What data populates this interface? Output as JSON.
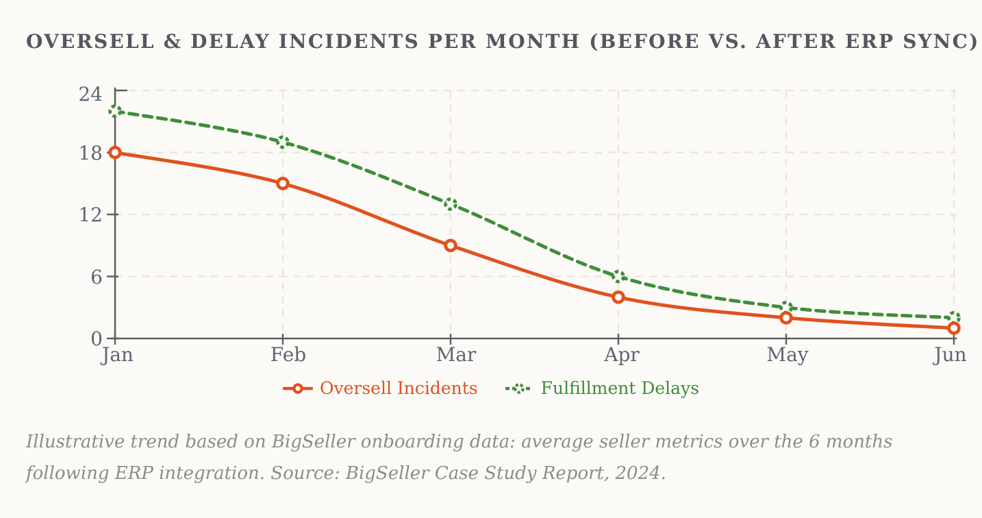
{
  "chart_data": {
    "type": "line",
    "title": "OVERSELL & DELAY INCIDENTS PER MONTH (BEFORE VS. AFTER ERP SYNC)",
    "categories": [
      "Jan",
      "Feb",
      "Mar",
      "Apr",
      "May",
      "Jun"
    ],
    "series": [
      {
        "name": "Oversell Incidents",
        "values": [
          18,
          15,
          9,
          4,
          2,
          1
        ],
        "color": "#e0521e",
        "line_style": "solid"
      },
      {
        "name": "Fulfillment Delays",
        "values": [
          22,
          19,
          13,
          6,
          3,
          2
        ],
        "color": "#3f8d3a",
        "line_style": "dashed"
      }
    ],
    "yticks": [
      0,
      6,
      12,
      18,
      24
    ],
    "ylim": [
      0,
      24
    ],
    "grid": true,
    "legend_position": "bottom",
    "background_color": "#fbfaf7",
    "grid_color": "#eae4da",
    "axis_color": "#5f5f5f",
    "label_color": "#5e6572"
  },
  "caption": "Illustrative trend based on BigSeller onboarding data: average seller metrics over the 6 months following ERP integration. Source: BigSeller Case Study Report, 2024."
}
